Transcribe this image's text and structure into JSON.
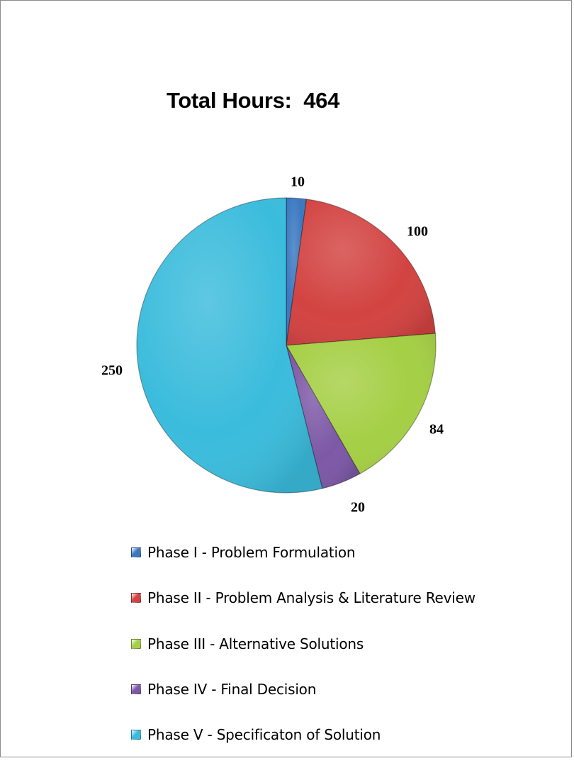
{
  "chart_data": {
    "type": "pie",
    "title": "Total Hours:  464",
    "categories": [
      "Phase I - Problem Formulation",
      "Phase II - Problem Analysis & Literature Review",
      "Phase III - Alternative Solutions",
      "Phase IV - Final Decision",
      "Phase V - Specificaton of Solution"
    ],
    "values": [
      10,
      100,
      84,
      20,
      250
    ],
    "data_labels": [
      "10",
      "100",
      "84",
      "20",
      "250"
    ],
    "colors": [
      "#3a78c0",
      "#d24341",
      "#a5cf45",
      "#7d58a6",
      "#3bbcdc"
    ],
    "start": "12 o'clock, clockwise",
    "legend_position": "bottom"
  }
}
